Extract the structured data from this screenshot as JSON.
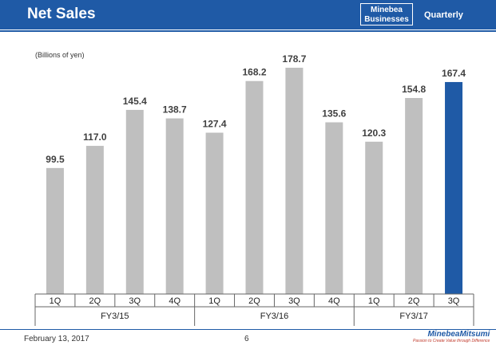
{
  "header": {
    "title": "Net Sales",
    "badge_line1": "Minebea",
    "badge_line2": "Businesses",
    "period": "Quarterly"
  },
  "footer": {
    "date": "February 13, 2017",
    "page": "6",
    "logo": "MinebeaMitsumi",
    "tagline": "Passion to Create Value through Difference"
  },
  "colors": {
    "brand": "#1f5aa6",
    "bar": "#bfbfbf",
    "highlight": "#1f5aa6"
  },
  "chart_data": {
    "type": "bar",
    "unit_label": "(Billions of yen)",
    "categories": [
      "1Q",
      "2Q",
      "3Q",
      "4Q",
      "1Q",
      "2Q",
      "3Q",
      "4Q",
      "1Q",
      "2Q",
      "3Q"
    ],
    "groups": [
      {
        "label": "FY3/15",
        "count": 4
      },
      {
        "label": "FY3/16",
        "count": 4
      },
      {
        "label": "FY3/17",
        "count": 3
      }
    ],
    "values": [
      99.5,
      117.0,
      145.4,
      138.7,
      127.4,
      168.2,
      178.7,
      135.6,
      120.3,
      154.8,
      167.4
    ],
    "value_labels": [
      "99.5",
      "117.0",
      "145.4",
      "138.7",
      "127.4",
      "168.2",
      "178.7",
      "135.6",
      "120.3",
      "154.8",
      "167.4"
    ],
    "highlight_index": 10,
    "ylim": [
      0,
      178.7
    ]
  }
}
